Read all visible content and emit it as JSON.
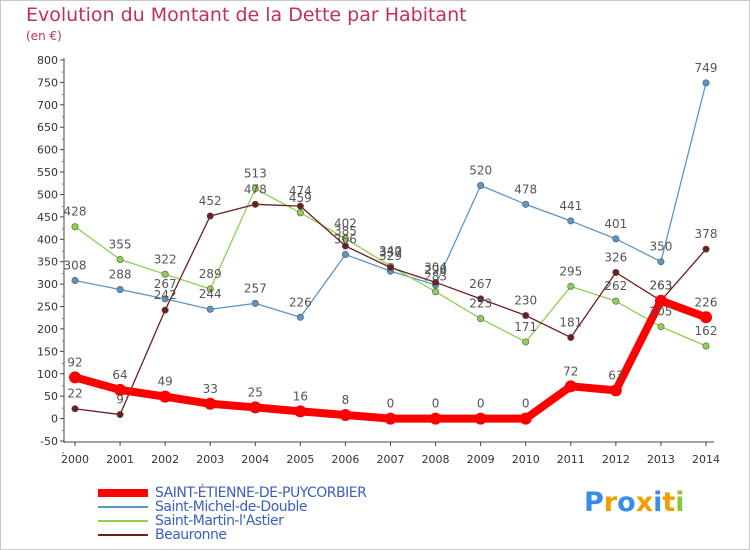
{
  "chart_data": {
    "type": "line",
    "title": "Evolution du Montant de la Dette par Habitant",
    "subtitle": "(en €)",
    "x": [
      2000,
      2001,
      2002,
      2003,
      2004,
      2005,
      2006,
      2007,
      2008,
      2009,
      2010,
      2011,
      2012,
      2013,
      2014
    ],
    "ylim": [
      -50,
      800
    ],
    "yticks": [
      -50,
      0,
      50,
      100,
      150,
      200,
      250,
      300,
      350,
      400,
      450,
      500,
      550,
      600,
      650,
      700,
      750,
      800
    ],
    "grid": false,
    "legend_position": "bottom-left",
    "series": [
      {
        "name": "SAINT-ÉTIENNE-DE-PUYCORBIER",
        "color": "#ff0000",
        "values": [
          92,
          64,
          49,
          33,
          25,
          16,
          8,
          0,
          0,
          0,
          0,
          72,
          63,
          263,
          226
        ]
      },
      {
        "name": "Saint-Michel-de-Double",
        "color": "#5a96c8",
        "values": [
          308,
          288,
          267,
          244,
          257,
          226,
          366,
          329,
          298,
          520,
          478,
          441,
          401,
          350,
          749
        ]
      },
      {
        "name": "Saint-Martin-l'Astier",
        "color": "#8cd250",
        "values": [
          428,
          355,
          322,
          289,
          513,
          459,
          402,
          340,
          283,
          223,
          171,
          295,
          262,
          205,
          162
        ]
      },
      {
        "name": "Beauronne",
        "color": "#6e1e1e",
        "values": [
          22,
          9,
          242,
          452,
          478,
          474,
          385,
          337,
          304,
          267,
          230,
          181,
          326,
          263,
          378
        ]
      }
    ]
  },
  "logo": {
    "letters": [
      "P",
      "r",
      "o",
      "x",
      "i",
      "t",
      "i"
    ],
    "colors": [
      "#3c8ce6",
      "#f0a000",
      "#3c8ce6",
      "#f0a000",
      "#3c8ce6",
      "#f0a000",
      "#8cc83c"
    ]
  }
}
